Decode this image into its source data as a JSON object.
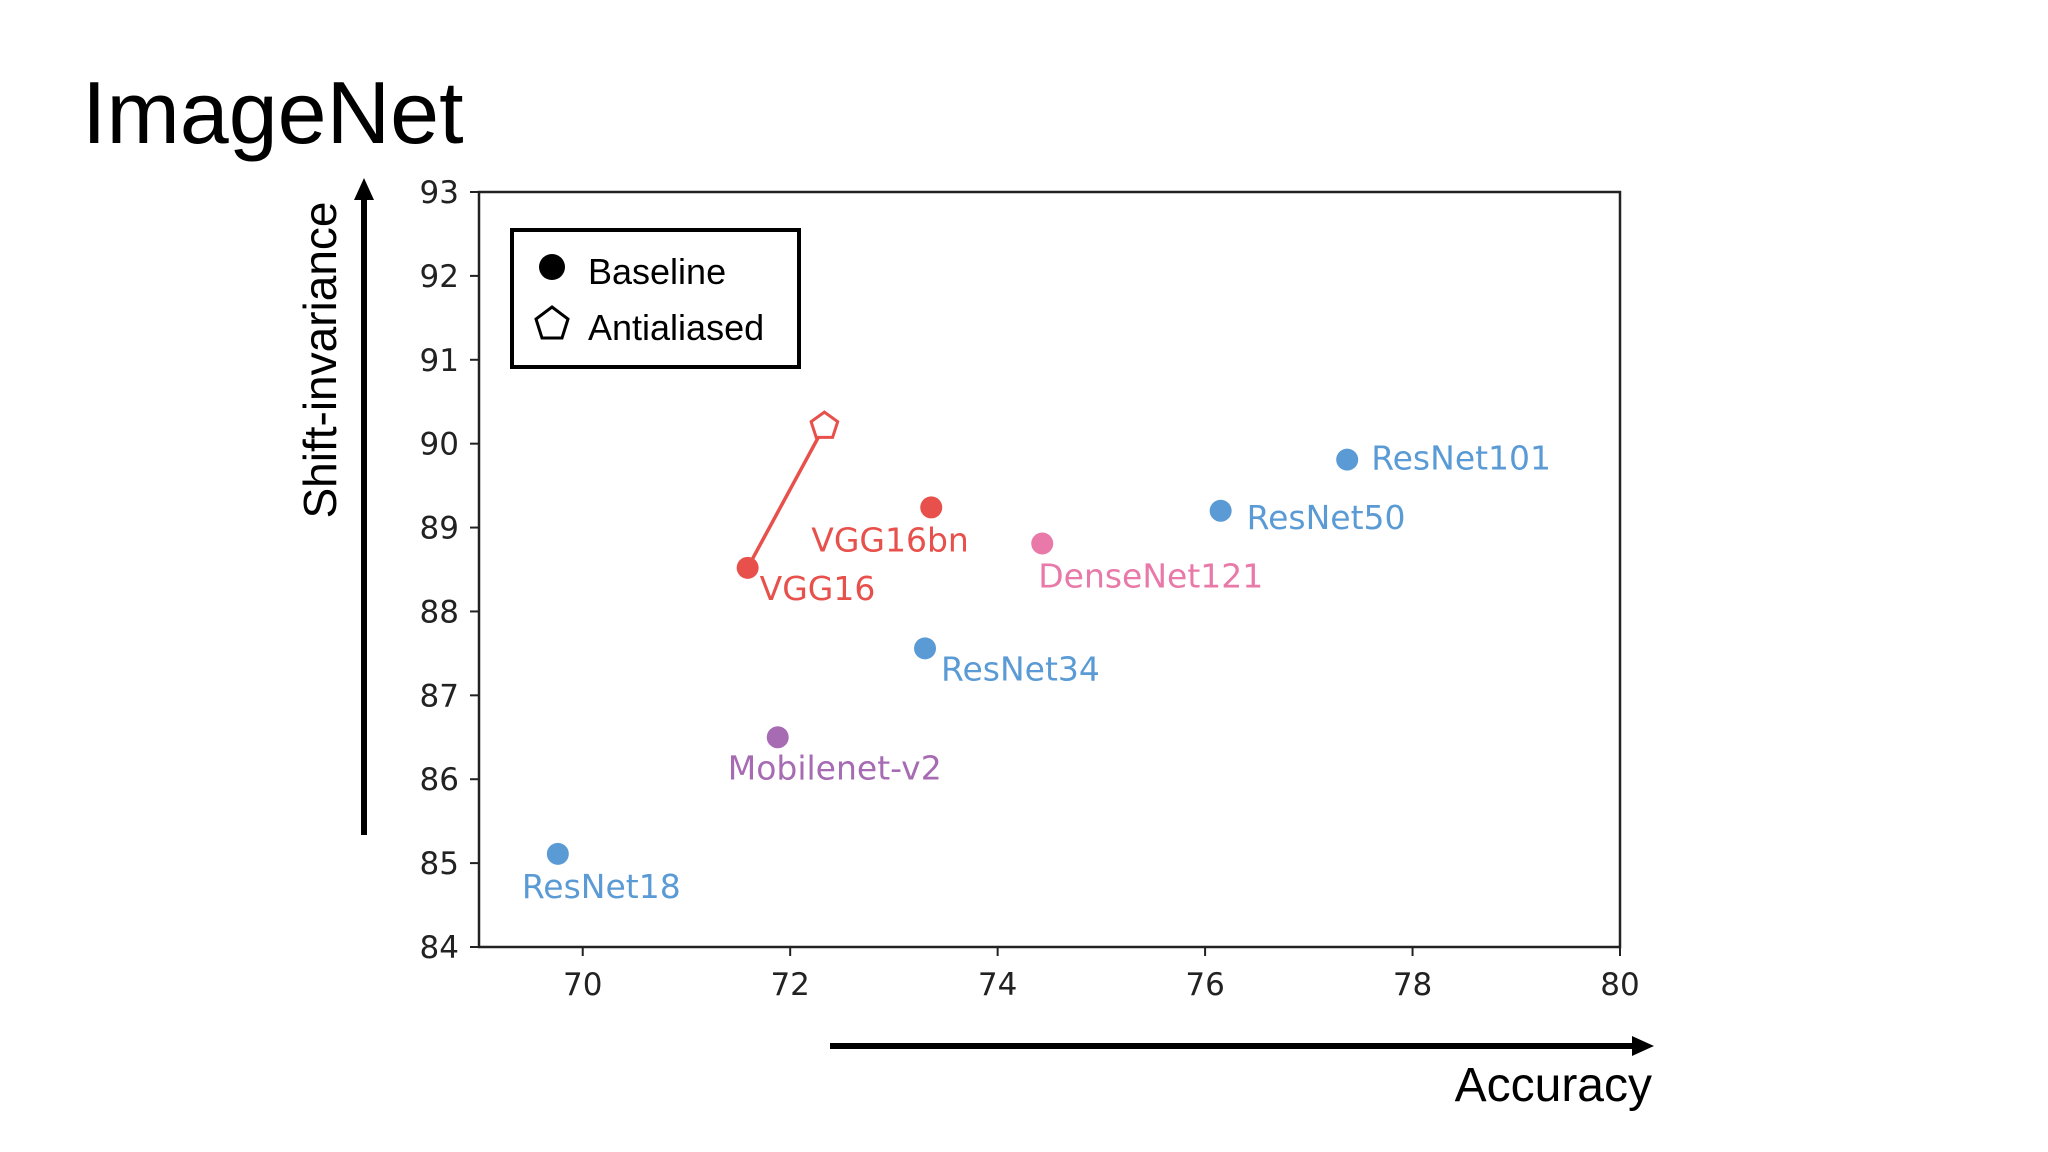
{
  "slide": {
    "title": "ImageNet",
    "x_axis_label": "Accuracy",
    "y_axis_label": "Shift-invariance"
  },
  "chart_data": {
    "type": "scatter",
    "xlim": [
      69,
      80
    ],
    "ylim": [
      84,
      93
    ],
    "x_ticks": [
      70,
      72,
      74,
      76,
      78,
      80
    ],
    "y_ticks": [
      84,
      85,
      86,
      87,
      88,
      89,
      90,
      91,
      92,
      93
    ],
    "grid": false,
    "legend": {
      "placement": "top-left",
      "entries": [
        {
          "label": "Baseline",
          "marker": "circle"
        },
        {
          "label": "Antialiased",
          "marker": "pentagon"
        }
      ]
    },
    "points": [
      {
        "label": "ResNet18",
        "x": 69.76,
        "y": 85.11,
        "color": "#5b9bd5",
        "marker": "baseline"
      },
      {
        "label": "Mobilenet-v2",
        "x": 71.88,
        "y": 86.5,
        "color": "#a66bb3",
        "marker": "baseline"
      },
      {
        "label": "VGG16",
        "x": 71.59,
        "y": 88.52,
        "color": "#e8504b",
        "marker": "baseline"
      },
      {
        "label": "VGG16bn",
        "x": 73.36,
        "y": 89.24,
        "color": "#e8504b",
        "marker": "baseline"
      },
      {
        "label": "ResNet34",
        "x": 73.3,
        "y": 87.56,
        "color": "#5b9bd5",
        "marker": "baseline"
      },
      {
        "label": "DenseNet121",
        "x": 74.43,
        "y": 88.81,
        "color": "#e879a8",
        "marker": "baseline"
      },
      {
        "label": "ResNet50",
        "x": 76.15,
        "y": 89.2,
        "color": "#5b9bd5",
        "marker": "baseline"
      },
      {
        "label": "ResNet101",
        "x": 77.37,
        "y": 89.81,
        "color": "#5b9bd5",
        "marker": "baseline"
      },
      {
        "label": "",
        "x": 72.33,
        "y": 90.21,
        "color": "#e8504b",
        "marker": "antialiased"
      }
    ],
    "connections": [
      {
        "from_x": 71.59,
        "from_y": 88.52,
        "to_x": 72.33,
        "to_y": 90.21,
        "color": "#e8504b"
      }
    ]
  }
}
